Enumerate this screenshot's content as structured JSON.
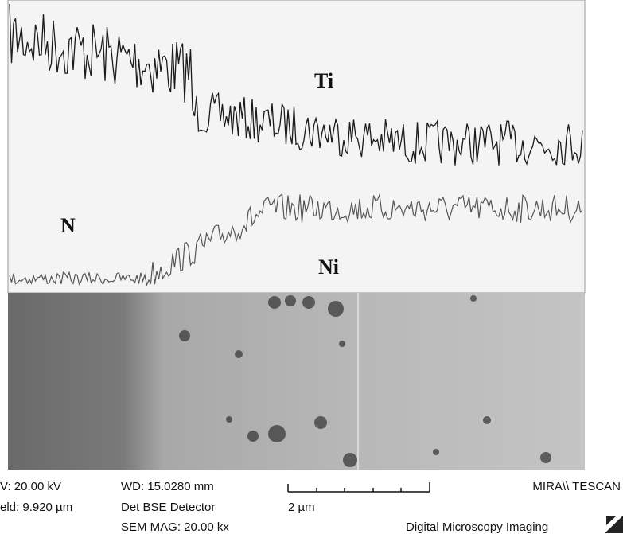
{
  "labels": {
    "ti": "Ti",
    "n": "N",
    "ni": "Ni"
  },
  "info": {
    "hv": "V: 20.00 kV",
    "field": "eld: 9.920 µm",
    "wd": "WD: 15.0280 mm",
    "detector": "Det BSE Detector",
    "mag": "SEM MAG: 20.00 kx",
    "scale": "2 µm",
    "brand": "MIRA\\\\ TESCAN",
    "imaging": "Digital Microscopy Imaging"
  }
}
